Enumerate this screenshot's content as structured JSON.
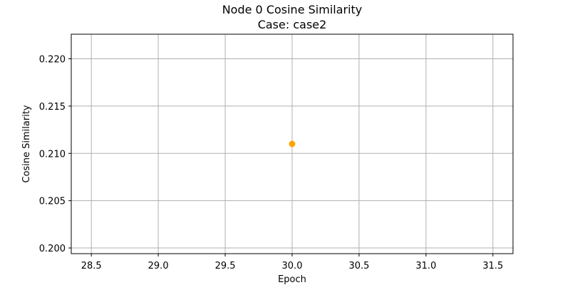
{
  "chart_data": {
    "type": "scatter",
    "title": "Node 0 Cosine Similarity",
    "subtitle": "Case: case2",
    "xlabel": "Epoch",
    "ylabel": "Cosine Similarity",
    "xlim": [
      28.35,
      31.65
    ],
    "ylim": [
      0.1994,
      0.2226
    ],
    "xticks": [
      28.5,
      29.0,
      29.5,
      30.0,
      30.5,
      31.0,
      31.5
    ],
    "xtick_labels": [
      "28.5",
      "29.0",
      "29.5",
      "30.0",
      "30.5",
      "31.0",
      "31.5"
    ],
    "yticks": [
      0.2,
      0.205,
      0.21,
      0.215,
      0.22
    ],
    "ytick_labels": [
      "0.200",
      "0.205",
      "0.210",
      "0.215",
      "0.220"
    ],
    "grid": true,
    "series": [
      {
        "color": "#ffa500",
        "points": [
          {
            "x": 30.0,
            "y": 0.211
          }
        ]
      }
    ]
  }
}
